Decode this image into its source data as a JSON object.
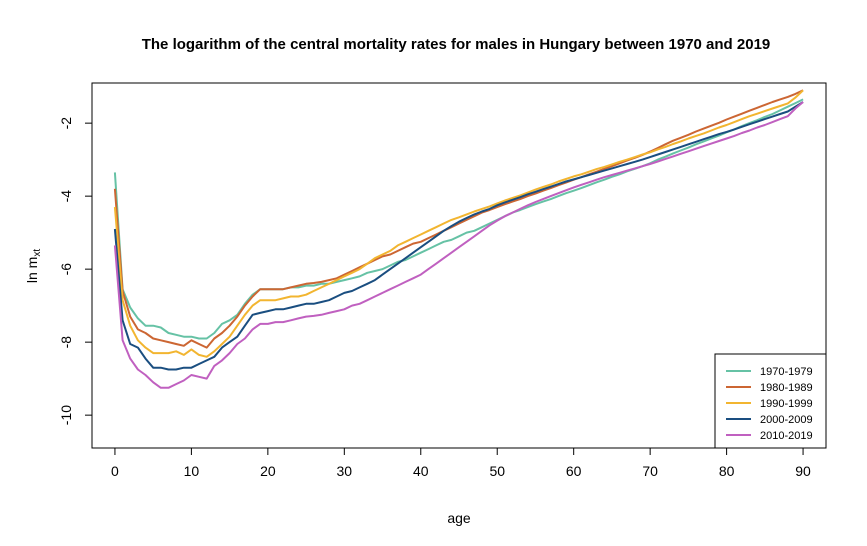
{
  "chart_data": {
    "type": "line",
    "title": "The logarithm of the central mortality rates for males in Hungary between 1970 and 2019",
    "xlabel": "age",
    "ylabel_main": "ln m",
    "ylabel_sub": "xt",
    "xlim": [
      -3,
      93
    ],
    "ylim": [
      -10.9,
      -0.9
    ],
    "xticks": [
      0,
      10,
      20,
      30,
      40,
      50,
      60,
      70,
      80,
      90
    ],
    "xtick_labels": [
      "0",
      "10",
      "20",
      "30",
      "40",
      "50",
      "60",
      "70",
      "80",
      "90"
    ],
    "yticks": [
      -10,
      -8,
      -6,
      -4,
      -2
    ],
    "ytick_labels": [
      "-10",
      "-8",
      "-6",
      "-4",
      "-2"
    ],
    "grid": false,
    "legend_position": "bottom-right",
    "x": [
      0,
      1,
      2,
      3,
      4,
      5,
      6,
      7,
      8,
      9,
      10,
      11,
      12,
      13,
      14,
      15,
      16,
      17,
      18,
      19,
      20,
      21,
      22,
      23,
      24,
      25,
      26,
      27,
      28,
      29,
      30,
      31,
      32,
      33,
      34,
      35,
      36,
      37,
      38,
      39,
      40,
      41,
      42,
      43,
      44,
      45,
      46,
      47,
      48,
      49,
      50,
      51,
      52,
      53,
      54,
      55,
      56,
      57,
      58,
      59,
      60,
      61,
      62,
      63,
      64,
      65,
      66,
      67,
      68,
      69,
      70,
      71,
      72,
      73,
      74,
      75,
      76,
      77,
      78,
      79,
      80,
      81,
      82,
      83,
      84,
      85,
      86,
      87,
      88,
      89,
      90
    ],
    "series": [
      {
        "name": "1970-1979",
        "color": "#66c2a5",
        "values": [
          -3.35,
          -6.55,
          -7.05,
          -7.35,
          -7.55,
          -7.55,
          -7.6,
          -7.75,
          -7.8,
          -7.85,
          -7.85,
          -7.9,
          -7.9,
          -7.75,
          -7.5,
          -7.4,
          -7.25,
          -6.95,
          -6.7,
          -6.55,
          -6.55,
          -6.55,
          -6.55,
          -6.5,
          -6.5,
          -6.45,
          -6.45,
          -6.4,
          -6.4,
          -6.35,
          -6.3,
          -6.25,
          -6.2,
          -6.1,
          -6.05,
          -6.0,
          -5.9,
          -5.8,
          -5.75,
          -5.65,
          -5.55,
          -5.45,
          -5.35,
          -5.25,
          -5.2,
          -5.1,
          -5.0,
          -4.95,
          -4.85,
          -4.75,
          -4.65,
          -4.55,
          -4.45,
          -4.38,
          -4.3,
          -4.22,
          -4.15,
          -4.08,
          -4.0,
          -3.92,
          -3.85,
          -3.78,
          -3.7,
          -3.62,
          -3.55,
          -3.47,
          -3.4,
          -3.32,
          -3.25,
          -3.18,
          -3.1,
          -3.0,
          -2.92,
          -2.83,
          -2.75,
          -2.67,
          -2.58,
          -2.5,
          -2.42,
          -2.34,
          -2.25,
          -2.17,
          -2.08,
          -2.0,
          -1.92,
          -1.83,
          -1.75,
          -1.65,
          -1.55,
          -1.45,
          -1.35
        ]
      },
      {
        "name": "1980-1989",
        "color": "#cc6633",
        "values": [
          -3.8,
          -6.6,
          -7.3,
          -7.65,
          -7.75,
          -7.9,
          -7.95,
          -8.0,
          -8.05,
          -8.1,
          -7.95,
          -8.05,
          -8.15,
          -7.9,
          -7.75,
          -7.55,
          -7.3,
          -7.0,
          -6.75,
          -6.55,
          -6.55,
          -6.55,
          -6.55,
          -6.5,
          -6.45,
          -6.4,
          -6.38,
          -6.35,
          -6.3,
          -6.25,
          -6.15,
          -6.05,
          -5.95,
          -5.85,
          -5.75,
          -5.65,
          -5.6,
          -5.5,
          -5.4,
          -5.3,
          -5.25,
          -5.15,
          -5.05,
          -4.95,
          -4.85,
          -4.75,
          -4.65,
          -4.55,
          -4.45,
          -4.38,
          -4.3,
          -4.22,
          -4.15,
          -4.08,
          -4.0,
          -3.93,
          -3.85,
          -3.78,
          -3.7,
          -3.63,
          -3.55,
          -3.48,
          -3.4,
          -3.33,
          -3.25,
          -3.18,
          -3.1,
          -3.02,
          -2.95,
          -2.87,
          -2.78,
          -2.68,
          -2.58,
          -2.48,
          -2.4,
          -2.32,
          -2.23,
          -2.15,
          -2.07,
          -1.99,
          -1.9,
          -1.82,
          -1.74,
          -1.66,
          -1.58,
          -1.5,
          -1.42,
          -1.35,
          -1.28,
          -1.2,
          -1.1
        ]
      },
      {
        "name": "1990-1999",
        "color": "#f2b530",
        "values": [
          -4.3,
          -6.85,
          -7.55,
          -7.95,
          -8.15,
          -8.3,
          -8.3,
          -8.3,
          -8.25,
          -8.35,
          -8.2,
          -8.35,
          -8.4,
          -8.25,
          -8.05,
          -7.85,
          -7.55,
          -7.25,
          -7.0,
          -6.85,
          -6.85,
          -6.85,
          -6.8,
          -6.75,
          -6.75,
          -6.7,
          -6.6,
          -6.5,
          -6.4,
          -6.3,
          -6.2,
          -6.1,
          -6.0,
          -5.85,
          -5.7,
          -5.6,
          -5.5,
          -5.35,
          -5.25,
          -5.15,
          -5.05,
          -4.95,
          -4.85,
          -4.75,
          -4.65,
          -4.58,
          -4.5,
          -4.42,
          -4.35,
          -4.28,
          -4.2,
          -4.12,
          -4.05,
          -3.98,
          -3.9,
          -3.82,
          -3.75,
          -3.68,
          -3.6,
          -3.53,
          -3.46,
          -3.4,
          -3.33,
          -3.26,
          -3.2,
          -3.13,
          -3.06,
          -3.0,
          -2.93,
          -2.86,
          -2.8,
          -2.72,
          -2.65,
          -2.57,
          -2.5,
          -2.42,
          -2.35,
          -2.28,
          -2.2,
          -2.12,
          -2.05,
          -1.97,
          -1.89,
          -1.81,
          -1.74,
          -1.67,
          -1.6,
          -1.53,
          -1.46,
          -1.3,
          -1.1
        ]
      },
      {
        "name": "2000-2009",
        "color": "#1a4e80",
        "values": [
          -4.9,
          -7.4,
          -8.05,
          -8.15,
          -8.45,
          -8.7,
          -8.7,
          -8.75,
          -8.75,
          -8.7,
          -8.7,
          -8.6,
          -8.5,
          -8.4,
          -8.15,
          -8.0,
          -7.85,
          -7.55,
          -7.25,
          -7.2,
          -7.15,
          -7.1,
          -7.1,
          -7.05,
          -7.0,
          -6.95,
          -6.95,
          -6.9,
          -6.85,
          -6.75,
          -6.65,
          -6.6,
          -6.5,
          -6.4,
          -6.3,
          -6.15,
          -6.0,
          -5.85,
          -5.7,
          -5.55,
          -5.4,
          -5.25,
          -5.1,
          -4.95,
          -4.82,
          -4.7,
          -4.6,
          -4.5,
          -4.42,
          -4.35,
          -4.25,
          -4.17,
          -4.1,
          -4.03,
          -3.95,
          -3.88,
          -3.81,
          -3.74,
          -3.67,
          -3.6,
          -3.54,
          -3.48,
          -3.42,
          -3.36,
          -3.3,
          -3.24,
          -3.18,
          -3.12,
          -3.06,
          -3.0,
          -2.93,
          -2.86,
          -2.79,
          -2.72,
          -2.65,
          -2.58,
          -2.51,
          -2.44,
          -2.37,
          -2.3,
          -2.24,
          -2.17,
          -2.1,
          -2.03,
          -1.96,
          -1.89,
          -1.82,
          -1.75,
          -1.68,
          -1.55,
          -1.42
        ]
      },
      {
        "name": "2010-2019",
        "color": "#c060c0",
        "values": [
          -5.35,
          -7.95,
          -8.45,
          -8.75,
          -8.9,
          -9.1,
          -9.25,
          -9.25,
          -9.15,
          -9.05,
          -8.9,
          -8.95,
          -9.0,
          -8.65,
          -8.5,
          -8.3,
          -8.05,
          -7.9,
          -7.65,
          -7.5,
          -7.5,
          -7.45,
          -7.45,
          -7.4,
          -7.35,
          -7.3,
          -7.28,
          -7.25,
          -7.2,
          -7.15,
          -7.1,
          -7.0,
          -6.95,
          -6.85,
          -6.75,
          -6.65,
          -6.55,
          -6.45,
          -6.35,
          -6.25,
          -6.15,
          -6.0,
          -5.85,
          -5.7,
          -5.55,
          -5.4,
          -5.25,
          -5.1,
          -4.95,
          -4.8,
          -4.67,
          -4.55,
          -4.45,
          -4.35,
          -4.25,
          -4.16,
          -4.08,
          -4.0,
          -3.92,
          -3.84,
          -3.76,
          -3.69,
          -3.62,
          -3.55,
          -3.48,
          -3.42,
          -3.36,
          -3.3,
          -3.24,
          -3.18,
          -3.12,
          -3.05,
          -2.98,
          -2.91,
          -2.84,
          -2.77,
          -2.7,
          -2.63,
          -2.56,
          -2.49,
          -2.42,
          -2.35,
          -2.27,
          -2.2,
          -2.12,
          -2.05,
          -1.97,
          -1.89,
          -1.81,
          -1.6,
          -1.42
        ]
      }
    ]
  }
}
